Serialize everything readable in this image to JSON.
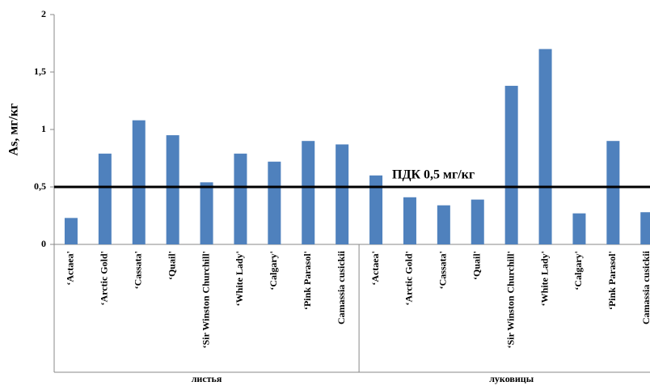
{
  "chart_data": {
    "type": "bar",
    "ylabel": "As, мг/кг",
    "categories": [
      "‘Actaea'",
      "‘Arctic Gold'",
      "‘Cassata'",
      "‘Quail'",
      "‘Sir Winston Churchill'",
      "‘White Lady'",
      "‘Calgary'",
      "‘Pink Parasol'",
      "Camassia cusickii",
      "‘Actaea'",
      "‘Arctic Gold'",
      "‘Cassata'",
      "‘Quail'",
      "‘Sir Winston Churchill'",
      "‘White Lady'",
      "‘Calgary'",
      "‘Pink Parasol'",
      "Camassia cusickii"
    ],
    "groups": [
      {
        "label": "листья",
        "count": 9
      },
      {
        "label": "луковицы",
        "count": 9
      }
    ],
    "values": [
      0.23,
      0.79,
      1.08,
      0.95,
      0.54,
      0.79,
      0.72,
      0.9,
      0.87,
      0.6,
      0.41,
      0.34,
      0.39,
      1.38,
      1.7,
      0.27,
      0.9,
      0.28
    ],
    "color": "#4f81bd",
    "ylim": [
      0,
      2
    ],
    "yticks": [
      0,
      {
        "value": 0.5,
        "label": "0,5"
      },
      1,
      {
        "value": 1.5,
        "label": "1,5"
      },
      2
    ],
    "grid": false,
    "reference_line": {
      "value": 0.5,
      "label": "ПДК 0,5 мг/кг",
      "color": "#000000"
    }
  }
}
